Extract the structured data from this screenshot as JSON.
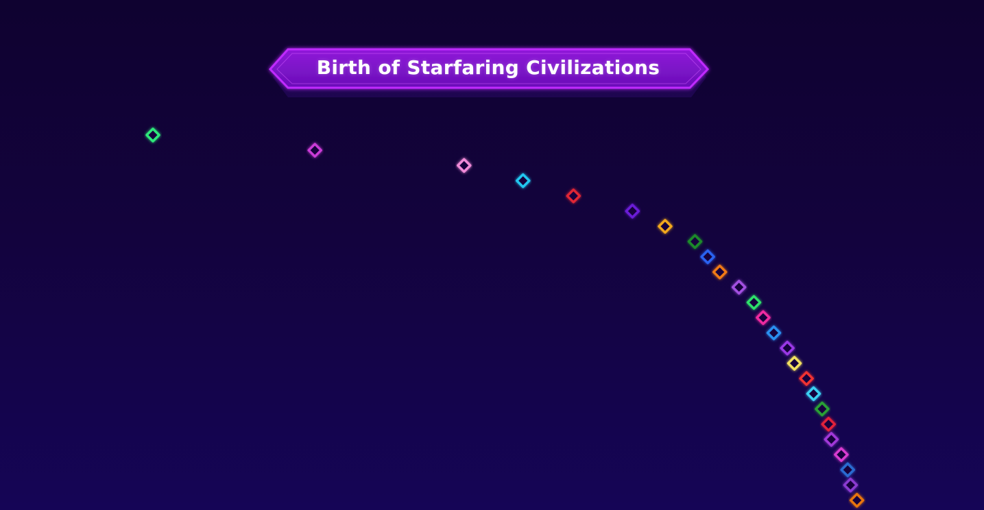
{
  "chart_data": {
    "type": "timeline",
    "title": "Birth of Starfaring Civilizations",
    "style": {
      "background": "#12033a",
      "track_color": "#3a2a78",
      "title_accent": "#b21cf0",
      "glow": true
    },
    "series": [
      {
        "start": 0.0,
        "color": "#2ee87a"
      },
      {
        "start": 0.228,
        "color": "#c93bd6"
      },
      {
        "start": 0.438,
        "color": "#f08ad8"
      },
      {
        "start": 0.521,
        "color": "#22c6f0"
      },
      {
        "start": 0.592,
        "color": "#e02636"
      },
      {
        "start": 0.675,
        "color": "#6a1fd6"
      },
      {
        "start": 0.721,
        "color": "#f2a81d"
      },
      {
        "start": 0.763,
        "color": "#1f8a2a"
      },
      {
        "start": 0.781,
        "color": "#2a62f0"
      },
      {
        "start": 0.798,
        "color": "#f07a16"
      },
      {
        "start": 0.825,
        "color": "#a24fe0"
      },
      {
        "start": 0.846,
        "color": "#2ee06a"
      },
      {
        "start": 0.859,
        "color": "#ee2aa0"
      },
      {
        "start": 0.874,
        "color": "#2a8ef0"
      },
      {
        "start": 0.893,
        "color": "#9a38e6"
      },
      {
        "start": 0.903,
        "color": "#f2e060"
      },
      {
        "start": 0.92,
        "color": "#f03030"
      },
      {
        "start": 0.93,
        "color": "#3ad0f2"
      },
      {
        "start": 0.942,
        "color": "#2aa036"
      },
      {
        "start": 0.951,
        "color": "#e0203a"
      },
      {
        "start": 0.955,
        "color": "#a038d8"
      },
      {
        "start": 0.969,
        "color": "#d83ad0"
      },
      {
        "start": 0.978,
        "color": "#2a6ad0"
      },
      {
        "start": 0.982,
        "color": "#8a3ad0"
      },
      {
        "start": 0.991,
        "color": "#e8740f"
      }
    ]
  }
}
